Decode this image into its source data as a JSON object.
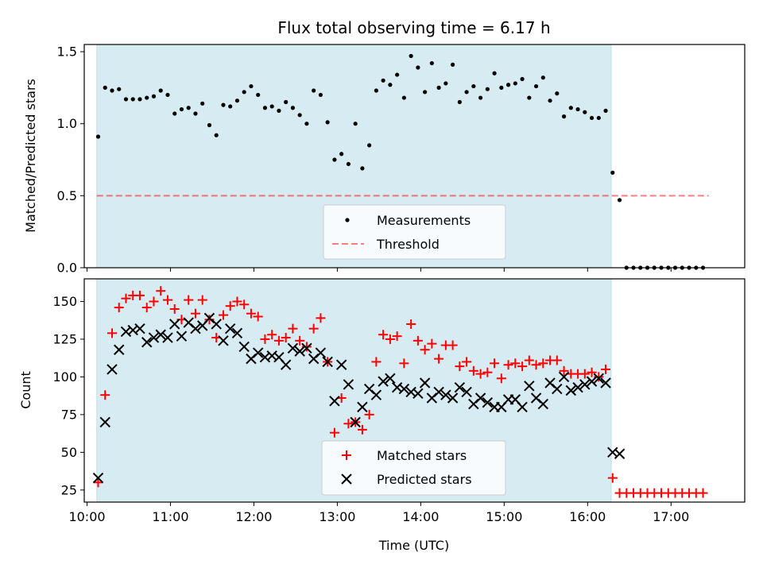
{
  "chart_data": {
    "title": "Flux total observing time = 6.17 h",
    "xlabel": "Time (UTC)",
    "x_ticks": [
      "10:00",
      "11:00",
      "12:00",
      "13:00",
      "14:00",
      "15:00",
      "16:00",
      "17:00"
    ],
    "xlim": [
      "09:58",
      "17:53"
    ],
    "observing_window": [
      "10:07",
      "16:17"
    ],
    "panels": [
      {
        "type": "scatter",
        "ylabel": "Matched/Predicted stars",
        "ylim": [
          0,
          1.55
        ],
        "y_ticks": [
          0.0,
          0.5,
          1.0,
          1.5
        ],
        "y_tick_labels": [
          "0.0",
          "0.5",
          "1.0",
          "1.5"
        ],
        "threshold": 0.5,
        "threshold_x": [
          "10:07",
          "17:27"
        ],
        "legend": [
          "Measurements",
          "Threshold"
        ],
        "legend_position": "lower-center",
        "series": [
          {
            "name": "Measurements",
            "x": [
              "10:08",
              "10:13",
              "10:18",
              "10:23",
              "10:28",
              "10:33",
              "10:38",
              "10:43",
              "10:48",
              "10:53",
              "10:58",
              "11:03",
              "11:08",
              "11:13",
              "11:18",
              "11:23",
              "11:28",
              "11:33",
              "11:38",
              "11:43",
              "11:48",
              "11:53",
              "11:58",
              "12:03",
              "12:08",
              "12:13",
              "12:18",
              "12:23",
              "12:28",
              "12:33",
              "12:38",
              "12:43",
              "12:48",
              "12:53",
              "12:58",
              "13:03",
              "13:08",
              "13:13",
              "13:18",
              "13:23",
              "13:28",
              "13:33",
              "13:38",
              "13:43",
              "13:48",
              "13:53",
              "13:58",
              "14:03",
              "14:08",
              "14:13",
              "14:18",
              "14:23",
              "14:28",
              "14:33",
              "14:38",
              "14:43",
              "14:48",
              "14:53",
              "14:58",
              "15:03",
              "15:08",
              "15:13",
              "15:18",
              "15:23",
              "15:28",
              "15:33",
              "15:38",
              "15:43",
              "15:48",
              "15:53",
              "15:58",
              "16:03",
              "16:08",
              "16:13",
              "16:18",
              "16:23",
              "16:28",
              "16:33",
              "16:38",
              "16:43",
              "16:48",
              "16:53",
              "16:58",
              "17:03",
              "17:08",
              "17:13",
              "17:18",
              "17:23"
            ],
            "y": [
              0.91,
              1.25,
              1.23,
              1.24,
              1.17,
              1.17,
              1.17,
              1.18,
              1.19,
              1.23,
              1.2,
              1.07,
              1.1,
              1.11,
              1.07,
              1.14,
              0.99,
              0.92,
              1.13,
              1.12,
              1.16,
              1.22,
              1.26,
              1.2,
              1.11,
              1.12,
              1.09,
              1.15,
              1.11,
              1.06,
              1.0,
              1.23,
              1.2,
              1.01,
              0.75,
              0.79,
              0.72,
              1.0,
              0.69,
              0.85,
              1.23,
              1.3,
              1.27,
              1.34,
              1.18,
              1.47,
              1.39,
              1.22,
              1.42,
              1.25,
              1.28,
              1.41,
              1.15,
              1.22,
              1.26,
              1.18,
              1.24,
              1.35,
              1.25,
              1.27,
              1.28,
              1.31,
              1.18,
              1.26,
              1.32,
              1.16,
              1.21,
              1.05,
              1.11,
              1.1,
              1.08,
              1.04,
              1.04,
              1.09,
              0.66,
              0.47,
              0.0,
              0.0,
              0.0,
              0.0,
              0.0,
              0.0,
              0.0,
              0.0,
              0.0,
              0.0,
              0.0,
              0.0
            ]
          },
          {
            "name": "Threshold",
            "x": [
              "10:07",
              "17:27"
            ],
            "y": [
              0.5,
              0.5
            ]
          }
        ]
      },
      {
        "type": "scatter",
        "ylabel": "Count",
        "ylim": [
          17,
          165
        ],
        "y_ticks": [
          25,
          50,
          75,
          100,
          125,
          150
        ],
        "y_tick_labels": [
          "25",
          "50",
          "75",
          "100",
          "125",
          "150"
        ],
        "legend": [
          "Matched stars",
          "Predicted stars"
        ],
        "legend_position": "lower-center",
        "series": [
          {
            "name": "Matched stars",
            "x": [
              "10:08",
              "10:13",
              "10:18",
              "10:23",
              "10:28",
              "10:33",
              "10:38",
              "10:43",
              "10:48",
              "10:53",
              "10:58",
              "11:03",
              "11:08",
              "11:13",
              "11:18",
              "11:23",
              "11:28",
              "11:33",
              "11:38",
              "11:43",
              "11:48",
              "11:53",
              "11:58",
              "12:03",
              "12:08",
              "12:13",
              "12:18",
              "12:23",
              "12:28",
              "12:33",
              "12:38",
              "12:43",
              "12:48",
              "12:53",
              "12:58",
              "13:03",
              "13:08",
              "13:13",
              "13:18",
              "13:23",
              "13:28",
              "13:33",
              "13:38",
              "13:43",
              "13:48",
              "13:53",
              "13:58",
              "14:03",
              "14:08",
              "14:13",
              "14:18",
              "14:23",
              "14:28",
              "14:33",
              "14:38",
              "14:43",
              "14:48",
              "14:53",
              "14:58",
              "15:03",
              "15:08",
              "15:13",
              "15:18",
              "15:23",
              "15:28",
              "15:33",
              "15:38",
              "15:43",
              "15:48",
              "15:53",
              "15:58",
              "16:03",
              "16:08",
              "16:13",
              "16:18",
              "16:23",
              "16:28",
              "16:33",
              "16:38",
              "16:43",
              "16:48",
              "16:53",
              "16:58",
              "17:03",
              "17:08",
              "17:13",
              "17:18",
              "17:23"
            ],
            "y": [
              30,
              88,
              129,
              146,
              152,
              154,
              154,
              146,
              150,
              157,
              151,
              145,
              138,
              151,
              142,
              151,
              138,
              126,
              141,
              147,
              150,
              148,
              142,
              140,
              125,
              128,
              124,
              126,
              132,
              124,
              120,
              132,
              139,
              110,
              63,
              86,
              69,
              70,
              65,
              75,
              110,
              128,
              125,
              127,
              109,
              135,
              124,
              118,
              122,
              112,
              121,
              121,
              107,
              110,
              104,
              102,
              103,
              109,
              99,
              108,
              109,
              107,
              111,
              108,
              109,
              111,
              111,
              104,
              102,
              102,
              102,
              103,
              100,
              105,
              33,
              23,
              23,
              23,
              23,
              23,
              23,
              23,
              23,
              23,
              23,
              23,
              23,
              23
            ]
          },
          {
            "name": "Predicted stars",
            "x": [
              "10:08",
              "10:13",
              "10:18",
              "10:23",
              "10:28",
              "10:33",
              "10:38",
              "10:43",
              "10:48",
              "10:53",
              "10:58",
              "11:03",
              "11:08",
              "11:13",
              "11:18",
              "11:23",
              "11:28",
              "11:33",
              "11:38",
              "11:43",
              "11:48",
              "11:53",
              "11:58",
              "12:03",
              "12:08",
              "12:13",
              "12:18",
              "12:23",
              "12:28",
              "12:33",
              "12:38",
              "12:43",
              "12:48",
              "12:53",
              "12:58",
              "13:03",
              "13:08",
              "13:13",
              "13:18",
              "13:23",
              "13:28",
              "13:33",
              "13:38",
              "13:43",
              "13:48",
              "13:53",
              "13:58",
              "14:03",
              "14:08",
              "14:13",
              "14:18",
              "14:23",
              "14:28",
              "14:33",
              "14:38",
              "14:43",
              "14:48",
              "14:53",
              "14:58",
              "15:03",
              "15:08",
              "15:13",
              "15:18",
              "15:23",
              "15:28",
              "15:33",
              "15:38",
              "15:43",
              "15:48",
              "15:53",
              "15:58",
              "16:03",
              "16:08",
              "16:13",
              "16:18",
              "16:23"
            ],
            "y": [
              33,
              70,
              105,
              118,
              130,
              131,
              132,
              123,
              126,
              128,
              126,
              135,
              127,
              136,
              132,
              134,
              139,
              135,
              124,
              132,
              129,
              120,
              112,
              116,
              113,
              114,
              113,
              108,
              119,
              117,
              119,
              112,
              116,
              110,
              84,
              108,
              95,
              70,
              80,
              92,
              88,
              97,
              99,
              93,
              92,
              90,
              89,
              96,
              86,
              90,
              88,
              86,
              93,
              90,
              82,
              86,
              83,
              80,
              80,
              85,
              85,
              80,
              94,
              86,
              82,
              96,
              92,
              100,
              91,
              93,
              95,
              97,
              99,
              96,
              50,
              49
            ]
          }
        ]
      }
    ]
  }
}
